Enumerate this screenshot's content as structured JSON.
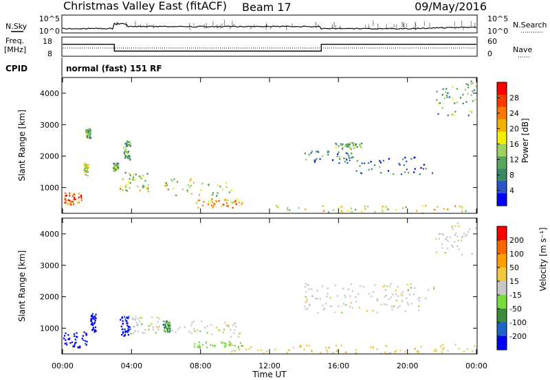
{
  "header": {
    "title": "Christmas Valley East (fitACF)",
    "beam": "Beam 17",
    "date": "09/May/2016"
  },
  "noise_panel": {
    "left_label": "N.Sky",
    "right_label": "N.Search",
    "left_ticks": [
      "10^5",
      "10^0"
    ],
    "right_ticks": [
      "10^5",
      "10^0"
    ]
  },
  "freq_panel": {
    "left_label_1": "Freq.",
    "left_label_2": "[MHz]",
    "left_ticks": [
      "18",
      "8"
    ],
    "right_label": "Nave",
    "right_ticks": [
      "60",
      "0"
    ],
    "freq_steps": [
      {
        "start_h": 0,
        "end_h": 3,
        "mhz": 15
      },
      {
        "start_h": 3,
        "end_h": 15,
        "mhz": 10.5
      },
      {
        "start_h": 15,
        "end_h": 24,
        "mhz": 15
      }
    ]
  },
  "cpid": {
    "label": "CPID",
    "value": "normal (fast) 151 RF"
  },
  "power_panel": {
    "ylabel": "Slant Range [km]",
    "yticks": [
      "4000",
      "3000",
      "2000",
      "1000"
    ],
    "colorbar_label": "Power [dB]",
    "colorbar_ticks": [
      "28",
      "24",
      "20",
      "16",
      "12",
      "8",
      "4"
    ],
    "colors": [
      "#0000ff",
      "#2a55c8",
      "#3c8a64",
      "#5aa55a",
      "#a0d060",
      "#f0f000",
      "#f0b400",
      "#ff7800",
      "#ff3c00",
      "#ff0000"
    ]
  },
  "velocity_panel": {
    "ylabel": "Slant Range [km]",
    "yticks": [
      "4000",
      "3000",
      "2000",
      "1000"
    ],
    "colorbar_label": "Velocity [m s⁻¹]",
    "colorbar_ticks": [
      "200",
      "100",
      "50",
      "15",
      "-15",
      "-50",
      "-100",
      "-200"
    ],
    "colors": [
      "#0000ff",
      "#1e64c8",
      "#3c8c3c",
      "#78dc3c",
      "#c8c8c8",
      "#f0c83c",
      "#ffa000",
      "#ff6400",
      "#ff0000"
    ]
  },
  "xaxis": {
    "label": "Time UT",
    "ticks": [
      "00:00",
      "04:00",
      "08:00",
      "12:00",
      "16:00",
      "20:00",
      "00:00"
    ]
  },
  "chart_data": {
    "type": "heatmap",
    "x_range_hours": [
      0,
      24
    ],
    "y_range_km": [
      180,
      4500
    ],
    "power_regions": [
      {
        "t0": 0.0,
        "t1": 1.1,
        "r0": 450,
        "r1": 850,
        "level": 8
      },
      {
        "t0": 1.2,
        "t1": 1.45,
        "r0": 1400,
        "r1": 1800,
        "level": 4
      },
      {
        "t0": 1.3,
        "t1": 1.6,
        "r0": 2600,
        "r1": 2900,
        "level": 3
      },
      {
        "t0": 2.9,
        "t1": 3.2,
        "r0": 1550,
        "r1": 1800,
        "level": 3
      },
      {
        "t0": 3.3,
        "t1": 5.0,
        "r0": 900,
        "r1": 1500,
        "level": 4
      },
      {
        "t0": 3.5,
        "t1": 3.9,
        "r0": 1900,
        "r1": 2500,
        "level": 3
      },
      {
        "t0": 5.8,
        "t1": 9.8,
        "r0": 750,
        "r1": 1300,
        "level": 4
      },
      {
        "t0": 7.6,
        "t1": 10.5,
        "r0": 380,
        "r1": 650,
        "level": 6
      },
      {
        "t0": 12.2,
        "t1": 23.9,
        "r0": 190,
        "r1": 450,
        "level": 5
      },
      {
        "t0": 14.0,
        "t1": 16.8,
        "r0": 1800,
        "r1": 2200,
        "level": 2
      },
      {
        "t0": 15.8,
        "t1": 17.3,
        "r0": 2250,
        "r1": 2450,
        "level": 3
      },
      {
        "t0": 17.0,
        "t1": 21.5,
        "r0": 1450,
        "r1": 2000,
        "level": 2
      },
      {
        "t0": 21.6,
        "t1": 24.0,
        "r0": 3300,
        "r1": 4450,
        "level": 3
      }
    ],
    "velocity_regions": [
      {
        "t0": 0.0,
        "t1": 1.4,
        "r0": 400,
        "r1": 900,
        "bin": 0
      },
      {
        "t0": 1.6,
        "t1": 1.9,
        "r0": 900,
        "r1": 1500,
        "bin": 0
      },
      {
        "t0": 3.3,
        "t1": 3.9,
        "r0": 750,
        "r1": 1400,
        "bin": 0
      },
      {
        "t0": 3.9,
        "t1": 5.6,
        "r0": 850,
        "r1": 1400,
        "bin": 4
      },
      {
        "t0": 5.8,
        "t1": 6.2,
        "r0": 900,
        "r1": 1250,
        "bin": 2
      },
      {
        "t0": 6.2,
        "t1": 10.3,
        "r0": 750,
        "r1": 1250,
        "bin": 4
      },
      {
        "t0": 7.6,
        "t1": 10.4,
        "r0": 380,
        "r1": 620,
        "bin": 3
      },
      {
        "t0": 9.5,
        "t1": 23.9,
        "r0": 190,
        "r1": 500,
        "bin": 5
      },
      {
        "t0": 14.0,
        "t1": 21.5,
        "r0": 1500,
        "r1": 2450,
        "bin": 4
      },
      {
        "t0": 21.6,
        "t1": 24.0,
        "r0": 3300,
        "r1": 4450,
        "bin": 4
      }
    ]
  }
}
